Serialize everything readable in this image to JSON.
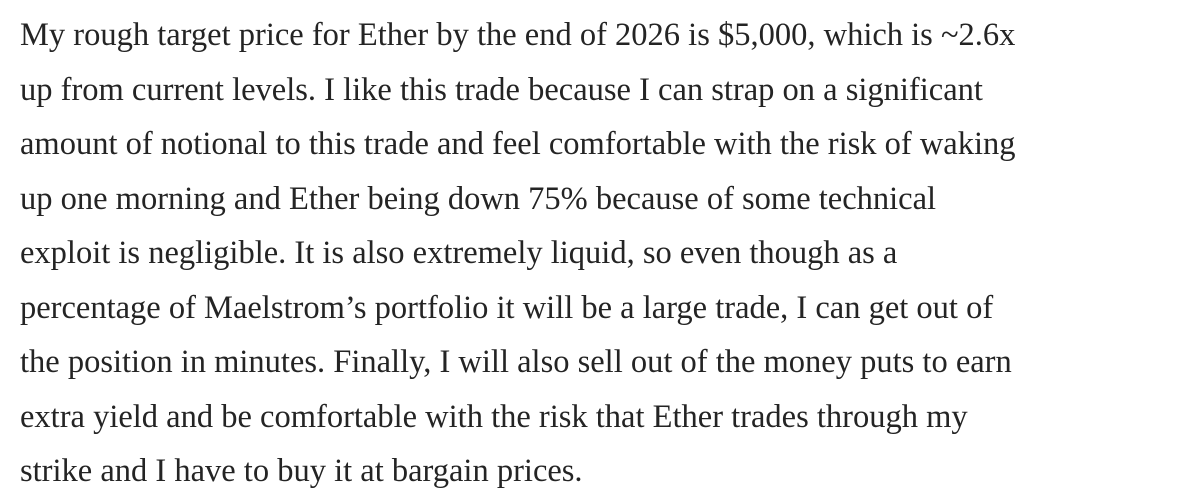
{
  "paragraph": {
    "lines": [
      "My rough target price for Ether by the end of 2026 is $5,000, which is ~2.6x",
      "up from current levels. I like this trade because I can strap on a significant",
      "amount of notional to this trade and feel comfortable with the risk of waking",
      "up one morning and Ether being down 75% because of some technical",
      "exploit is negligible. It is also extremely liquid, so even though as a",
      "percentage of Maelstrom’s portfolio it will be a large trade, I can get out of",
      "the position in minutes. Finally, I will also sell out of the money puts to earn",
      "extra yield and be comfortable with the risk that Ether trades through my",
      "strike and I have to buy it at bargain prices."
    ]
  }
}
